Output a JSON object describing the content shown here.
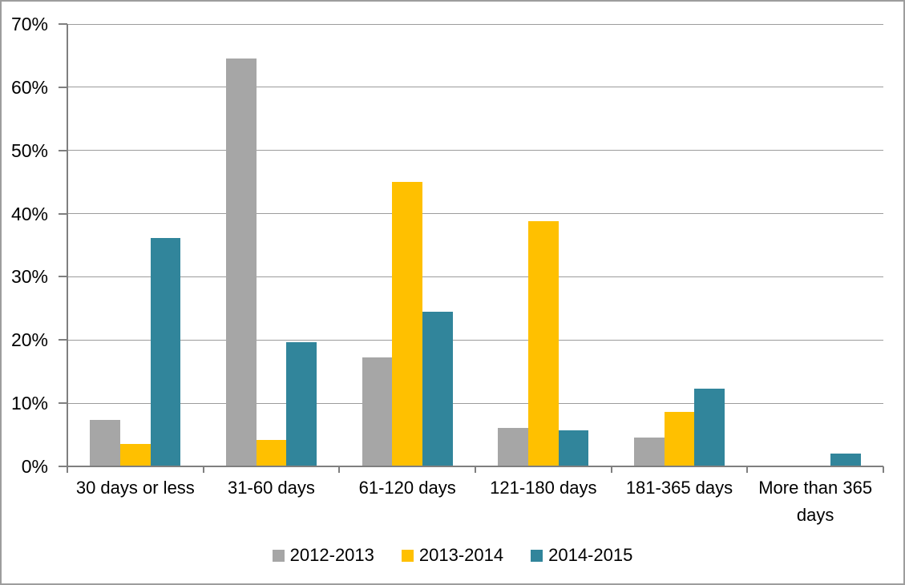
{
  "chart_data": {
    "type": "bar",
    "title": "",
    "xlabel": "",
    "ylabel": "",
    "categories": [
      "30 days or less",
      "31-60 days",
      "61-120 days",
      "121-180 days",
      "181-365 days",
      "More than 365 days"
    ],
    "series": [
      {
        "name": "2012-2013",
        "color": "#A6A6A6",
        "values": [
          7.3,
          64.5,
          17.3,
          6.1,
          4.6,
          0
        ]
      },
      {
        "name": "2013-2014",
        "color": "#FFC000",
        "values": [
          3.5,
          4.2,
          45.0,
          38.8,
          8.6,
          0
        ]
      },
      {
        "name": "2014-2015",
        "color": "#31859B",
        "values": [
          36.1,
          19.6,
          24.5,
          5.7,
          12.3,
          2.0
        ]
      }
    ],
    "ylim": [
      0,
      70
    ],
    "ytick_step": 10,
    "ytick_labels": [
      "0%",
      "10%",
      "20%",
      "30%",
      "40%",
      "50%",
      "60%",
      "70%"
    ],
    "grid": true,
    "legend_position": "bottom"
  },
  "colors": {
    "background": "#FFFFFF",
    "gridline": "#9C9C9C",
    "axis": "#7F7F7F",
    "text": "#000000",
    "frame_border": "#9D9D9D"
  }
}
